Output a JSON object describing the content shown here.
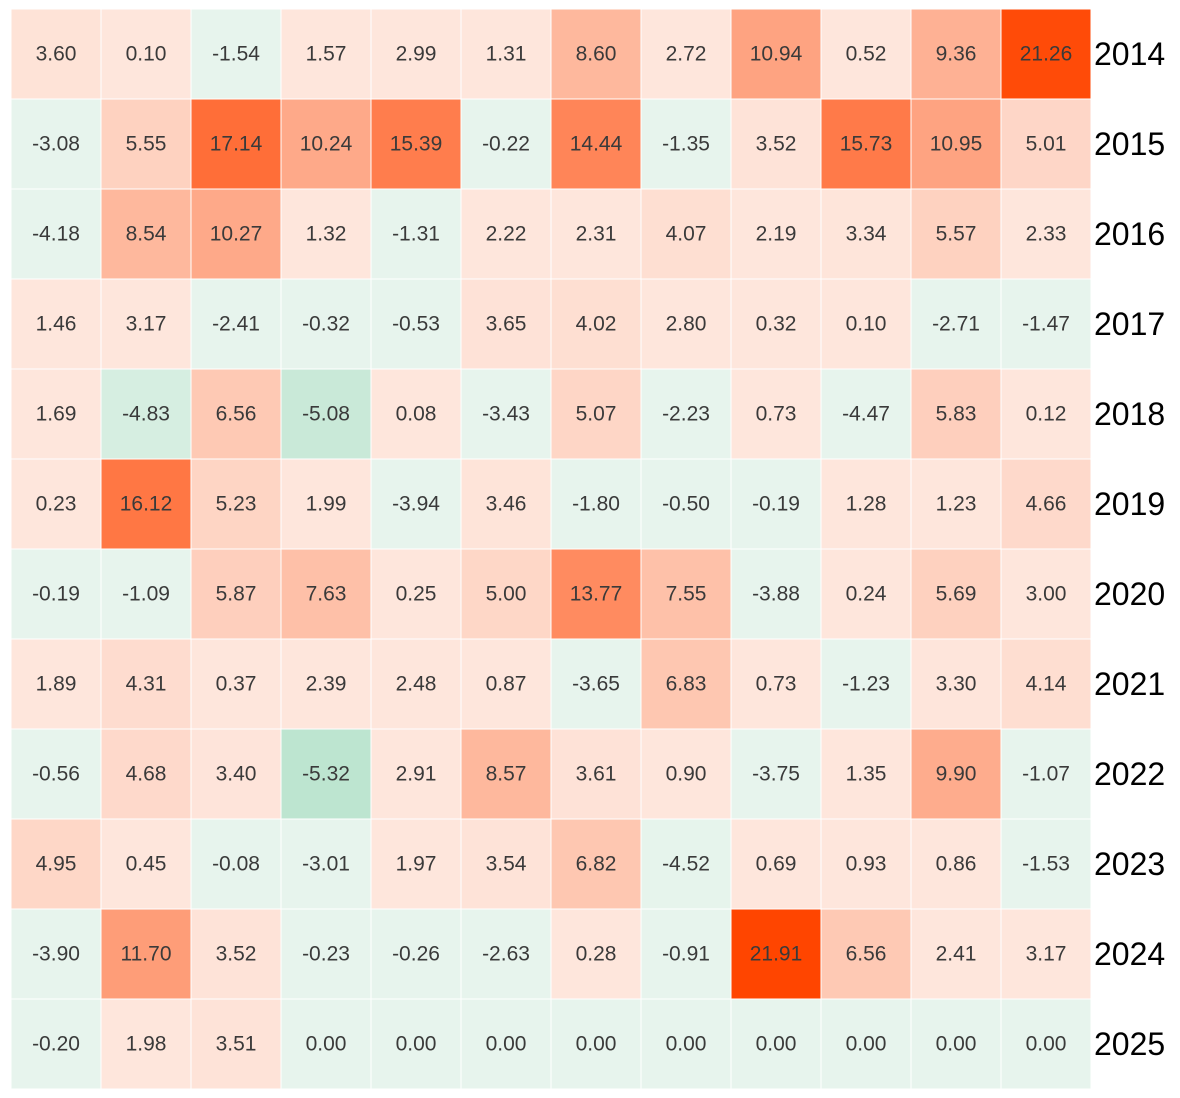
{
  "chart_data": {
    "type": "heatmap",
    "title": "",
    "xlabel": "",
    "ylabel": "",
    "rows": [
      "2014",
      "2015",
      "2016",
      "2017",
      "2018",
      "2019",
      "2020",
      "2021",
      "2022",
      "2023",
      "2024",
      "2025"
    ],
    "values": [
      [
        3.6,
        0.1,
        -1.54,
        1.57,
        2.99,
        1.31,
        8.6,
        2.72,
        10.94,
        0.52,
        9.36,
        21.26
      ],
      [
        -3.08,
        5.55,
        17.14,
        10.24,
        15.39,
        -0.22,
        14.44,
        -1.35,
        3.52,
        15.73,
        10.95,
        5.01
      ],
      [
        -4.18,
        8.54,
        10.27,
        1.32,
        -1.31,
        2.22,
        2.31,
        4.07,
        2.19,
        3.34,
        5.57,
        2.33
      ],
      [
        1.46,
        3.17,
        -2.41,
        -0.32,
        -0.53,
        3.65,
        4.02,
        2.8,
        0.32,
        0.1,
        -2.71,
        -1.47
      ],
      [
        1.69,
        -4.83,
        6.56,
        -5.08,
        0.08,
        -3.43,
        5.07,
        -2.23,
        0.73,
        -4.47,
        5.83,
        0.12
      ],
      [
        0.23,
        16.12,
        5.23,
        1.99,
        -3.94,
        3.46,
        -1.8,
        -0.5,
        -0.19,
        1.28,
        1.23,
        4.66
      ],
      [
        -0.19,
        -1.09,
        5.87,
        7.63,
        0.25,
        5.0,
        13.77,
        7.55,
        -3.88,
        0.24,
        5.69,
        3.0
      ],
      [
        1.89,
        4.31,
        0.37,
        2.39,
        2.48,
        0.87,
        -3.65,
        6.83,
        0.73,
        -1.23,
        3.3,
        4.14
      ],
      [
        -0.56,
        4.68,
        3.4,
        -5.32,
        2.91,
        8.57,
        3.61,
        0.9,
        -3.75,
        1.35,
        9.9,
        -1.07
      ],
      [
        4.95,
        0.45,
        -0.08,
        -3.01,
        1.97,
        3.54,
        6.82,
        -4.52,
        0.69,
        0.93,
        0.86,
        -1.53
      ],
      [
        -3.9,
        11.7,
        3.52,
        -0.23,
        -0.26,
        -2.63,
        0.28,
        -0.91,
        21.91,
        6.56,
        2.41,
        3.17
      ],
      [
        -0.2,
        1.98,
        3.51,
        0.0,
        0.0,
        0.0,
        0.0,
        0.0,
        0.0,
        0.0,
        0.0,
        0.0
      ]
    ],
    "value_format": "0.00",
    "colors": {
      "positive_low": "#fee6dc",
      "positive_high": "#ff4500",
      "negative_low": "#e7f4ed",
      "negative_high": "#bde5d0",
      "cell_border": "#ffffff",
      "label_text": "#3a3a3a",
      "row_label_text": "#000000"
    },
    "legend": "none",
    "grid": false
  }
}
